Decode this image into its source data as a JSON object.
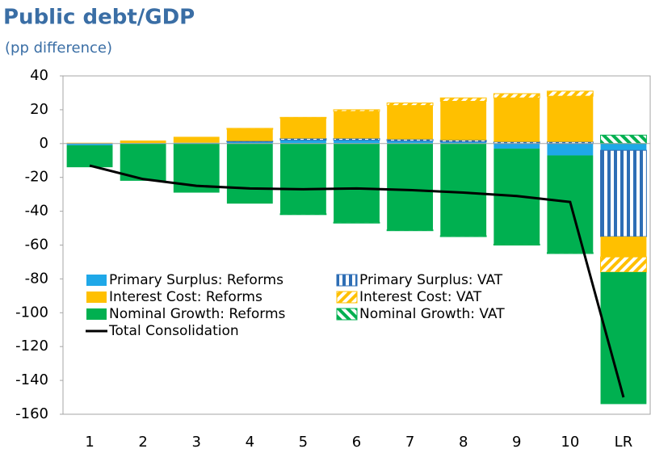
{
  "chart_data": {
    "type": "bar",
    "stacked": true,
    "title": "Public debt/GDP",
    "subtitle": "(pp difference)",
    "categories": [
      "1",
      "2",
      "3",
      "4",
      "5",
      "6",
      "7",
      "8",
      "9",
      "10",
      "LR"
    ],
    "ylim": [
      -160,
      40
    ],
    "yticks": [
      -160,
      -140,
      -120,
      -100,
      -80,
      -60,
      -40,
      -20,
      0,
      20,
      40
    ],
    "grid": false,
    "legend": "center left",
    "series": [
      {
        "name": "Primary Surplus: Reforms",
        "color": "#1fa8e8",
        "values": [
          -1,
          0.3,
          0.5,
          1,
          2,
          2,
          1.5,
          1,
          -3,
          -7,
          -4
        ]
      },
      {
        "name": "Primary Surplus: VAT",
        "color": "#2e6eb5",
        "pattern": "vertical",
        "values": [
          0,
          0,
          0,
          0.5,
          1,
          1,
          1,
          1,
          1,
          1,
          -51
        ]
      },
      {
        "name": "Interest Cost: Reforms",
        "color": "#ffc000",
        "values": [
          0.5,
          1.5,
          3.5,
          7,
          12,
          16,
          20,
          23,
          26,
          27,
          -12
        ]
      },
      {
        "name": "Interest Cost: VAT",
        "color": "#ffc000",
        "pattern": "diagonal",
        "values": [
          0,
          0,
          0,
          0.5,
          0.5,
          1,
          1.5,
          2,
          2.5,
          3,
          -9
        ]
      },
      {
        "name": "Nominal Growth: Reforms",
        "color": "#00b050",
        "values": [
          -13,
          -22,
          -29,
          -35.5,
          -41.5,
          -46.5,
          -51,
          -54.5,
          -56.5,
          -57.5,
          -78
        ]
      },
      {
        "name": "Nominal Growth: VAT",
        "color": "#00b050",
        "pattern": "diagonal-reverse",
        "values": [
          0,
          0,
          0,
          0,
          -0.5,
          -0.5,
          -0.5,
          -0.5,
          -0.5,
          -0.5,
          5
        ]
      },
      {
        "name": "Total Consolidation",
        "color": "#000000",
        "type": "line",
        "values": [
          -13,
          -21,
          -25,
          -26.5,
          -27,
          -26.5,
          -27.5,
          -29,
          -31,
          -34.5,
          -150
        ]
      }
    ]
  }
}
